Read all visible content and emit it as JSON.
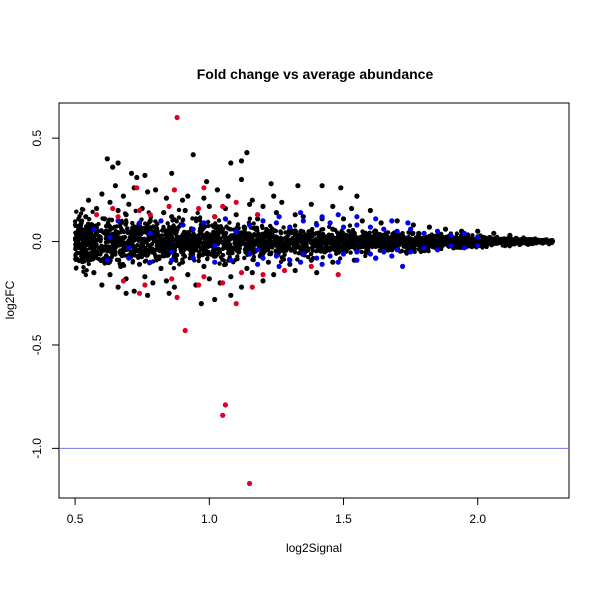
{
  "chart_data": {
    "type": "scatter",
    "title": "Fold change vs average abundance",
    "xlabel": "log2Signal",
    "ylabel": "log2FC",
    "xlim": [
      0.44,
      2.34
    ],
    "ylim": [
      -1.24,
      0.67
    ],
    "x_ticks": [
      0.5,
      1.0,
      1.5,
      2.0
    ],
    "x_tick_labels": [
      "0.5",
      "1.0",
      "1.5",
      "2.0"
    ],
    "y_ticks": [
      -1.0,
      -0.5,
      0.0,
      0.5
    ],
    "y_tick_labels": [
      "-1.0",
      "-0.5",
      "0.0",
      "0.5"
    ],
    "grid": false,
    "hline": {
      "y": -1.0,
      "color": "#7777dd"
    },
    "colors": {
      "black": "#000000",
      "blue": "#0000ee",
      "red": "#dd0022"
    },
    "series": [
      {
        "color": "black",
        "points": [
          [
            0.62,
            0.4
          ],
          [
            0.66,
            0.38
          ],
          [
            0.64,
            0.36
          ],
          [
            0.71,
            0.33
          ],
          [
            0.73,
            0.31
          ],
          [
            0.76,
            0.32
          ],
          [
            0.86,
            0.33
          ],
          [
            0.94,
            0.42
          ],
          [
            1.14,
            0.43
          ],
          [
            1.12,
            0.39
          ],
          [
            1.08,
            0.38
          ],
          [
            0.99,
            0.29
          ],
          [
            1.03,
            0.25
          ],
          [
            1.12,
            0.3
          ],
          [
            1.23,
            0.28
          ],
          [
            1.33,
            0.27
          ],
          [
            1.42,
            0.27
          ],
          [
            1.49,
            0.26
          ],
          [
            1.55,
            0.22
          ],
          [
            0.65,
            0.27
          ],
          [
            0.72,
            0.26
          ],
          [
            0.8,
            0.25
          ],
          [
            0.6,
            0.23
          ],
          [
            0.68,
            0.22
          ],
          [
            0.77,
            0.24
          ],
          [
            0.84,
            0.21
          ],
          [
            0.92,
            0.22
          ],
          [
            0.55,
            0.2
          ],
          [
            0.63,
            0.19
          ],
          [
            0.7,
            0.18
          ],
          [
            0.58,
            0.16
          ],
          [
            0.66,
            0.15
          ],
          [
            0.75,
            0.16
          ],
          [
            0.83,
            0.14
          ],
          [
            0.91,
            0.15
          ],
          [
            1.0,
            0.17
          ],
          [
            1.06,
            0.16
          ],
          [
            1.15,
            0.18
          ],
          [
            1.2,
            0.17
          ],
          [
            1.27,
            0.19
          ],
          [
            1.32,
            0.13
          ],
          [
            0.54,
            0.12
          ],
          [
            0.61,
            0.11
          ],
          [
            0.69,
            0.13
          ],
          [
            0.78,
            0.1
          ],
          [
            0.86,
            0.12
          ],
          [
            0.95,
            0.11
          ],
          [
            1.02,
            0.12
          ],
          [
            1.1,
            0.13
          ],
          [
            1.18,
            0.11
          ],
          [
            1.25,
            0.14
          ],
          [
            1.35,
            0.12
          ],
          [
            1.42,
            0.11
          ],
          [
            1.5,
            0.11
          ],
          [
            1.57,
            0.1
          ],
          [
            1.64,
            0.09
          ],
          [
            1.7,
            0.1
          ],
          [
            1.76,
            0.08
          ],
          [
            1.82,
            0.07
          ],
          [
            1.88,
            0.06
          ],
          [
            1.94,
            0.05
          ],
          [
            2.0,
            0.05
          ],
          [
            2.06,
            0.04
          ],
          [
            2.12,
            0.03
          ],
          [
            0.52,
            0.08
          ],
          [
            0.57,
            0.06
          ],
          [
            0.63,
            0.07
          ],
          [
            0.72,
            0.05
          ],
          [
            0.8,
            0.07
          ],
          [
            0.88,
            0.06
          ],
          [
            0.97,
            0.08
          ],
          [
            1.05,
            0.06
          ],
          [
            1.13,
            0.07
          ],
          [
            1.22,
            0.05
          ],
          [
            1.3,
            0.06
          ],
          [
            1.38,
            0.05
          ],
          [
            1.46,
            0.06
          ],
          [
            1.54,
            0.04
          ],
          [
            1.62,
            0.05
          ],
          [
            1.7,
            0.03
          ],
          [
            1.78,
            0.04
          ],
          [
            1.86,
            0.02
          ],
          [
            1.94,
            0.03
          ],
          [
            2.02,
            0.02
          ],
          [
            2.1,
            0.01
          ],
          [
            2.18,
            0.01
          ],
          [
            0.51,
            0.02
          ],
          [
            0.56,
            0.01
          ],
          [
            0.62,
            0.03
          ],
          [
            0.7,
            0.0
          ],
          [
            0.78,
            0.02
          ],
          [
            0.86,
            0.01
          ],
          [
            0.94,
            -0.01
          ],
          [
            1.02,
            0.02
          ],
          [
            1.1,
            0.0
          ],
          [
            1.18,
            0.01
          ],
          [
            1.26,
            -0.01
          ],
          [
            1.34,
            0.01
          ],
          [
            1.42,
            0.0
          ],
          [
            1.5,
            0.02
          ],
          [
            1.58,
            -0.01
          ],
          [
            1.66,
            0.01
          ],
          [
            1.74,
            0.0
          ],
          [
            1.82,
            0.01
          ],
          [
            1.9,
            -0.01
          ],
          [
            1.98,
            0.0
          ],
          [
            2.06,
            0.01
          ],
          [
            2.14,
            0.0
          ],
          [
            2.2,
            0.01
          ],
          [
            2.24,
            0.0
          ],
          [
            2.27,
            0.0
          ],
          [
            0.53,
            -0.03
          ],
          [
            0.58,
            -0.05
          ],
          [
            0.64,
            -0.04
          ],
          [
            0.71,
            -0.06
          ],
          [
            0.79,
            -0.05
          ],
          [
            0.87,
            -0.07
          ],
          [
            0.95,
            -0.04
          ],
          [
            1.03,
            -0.06
          ],
          [
            1.11,
            -0.05
          ],
          [
            1.19,
            -0.07
          ],
          [
            1.27,
            -0.04
          ],
          [
            1.35,
            -0.06
          ],
          [
            1.43,
            -0.05
          ],
          [
            1.51,
            -0.04
          ],
          [
            1.59,
            -0.05
          ],
          [
            1.67,
            -0.03
          ],
          [
            1.75,
            -0.04
          ],
          [
            1.83,
            -0.02
          ],
          [
            1.91,
            -0.03
          ],
          [
            1.99,
            -0.02
          ],
          [
            0.55,
            -0.09
          ],
          [
            0.61,
            -0.1
          ],
          [
            0.67,
            -0.12
          ],
          [
            0.74,
            -0.11
          ],
          [
            0.82,
            -0.13
          ],
          [
            0.9,
            -0.1
          ],
          [
            0.98,
            -0.12
          ],
          [
            1.06,
            -0.11
          ],
          [
            1.14,
            -0.13
          ],
          [
            1.22,
            -0.1
          ],
          [
            1.3,
            -0.11
          ],
          [
            1.38,
            -0.09
          ],
          [
            1.46,
            -0.1
          ],
          [
            1.54,
            -0.09
          ],
          [
            1.62,
            -0.08
          ],
          [
            0.57,
            -0.15
          ],
          [
            0.63,
            -0.16
          ],
          [
            0.69,
            -0.18
          ],
          [
            0.76,
            -0.17
          ],
          [
            0.84,
            -0.19
          ],
          [
            0.92,
            -0.16
          ],
          [
            1.0,
            -0.18
          ],
          [
            1.08,
            -0.17
          ],
          [
            1.16,
            -0.15
          ],
          [
            1.24,
            -0.16
          ],
          [
            1.32,
            -0.14
          ],
          [
            1.4,
            -0.15
          ],
          [
            0.6,
            -0.21
          ],
          [
            0.66,
            -0.22
          ],
          [
            0.72,
            -0.24
          ],
          [
            0.79,
            -0.2
          ],
          [
            0.87,
            -0.22
          ],
          [
            0.95,
            -0.21
          ],
          [
            1.04,
            -0.2
          ],
          [
            1.12,
            -0.22
          ],
          [
            1.2,
            -0.19
          ],
          [
            0.69,
            -0.25
          ],
          [
            0.77,
            -0.26
          ],
          [
            0.85,
            -0.25
          ],
          [
            0.97,
            -0.3
          ],
          [
            1.02,
            -0.28
          ],
          [
            1.08,
            -0.26
          ],
          [
            0.9,
            0.2
          ],
          [
            0.98,
            0.21
          ],
          [
            1.07,
            0.22
          ],
          [
            1.16,
            0.2
          ],
          [
            1.24,
            0.22
          ],
          [
            1.38,
            0.18
          ],
          [
            1.46,
            0.17
          ],
          [
            1.53,
            0.16
          ],
          [
            1.6,
            0.15
          ]
        ]
      },
      {
        "color": "blue",
        "points": [
          [
            0.57,
            0.06
          ],
          [
            0.63,
            0.02
          ],
          [
            0.7,
            -0.03
          ],
          [
            0.78,
            0.04
          ],
          [
            0.86,
            -0.05
          ],
          [
            0.94,
            0.06
          ],
          [
            1.02,
            -0.02
          ],
          [
            1.1,
            0.05
          ],
          [
            1.18,
            -0.04
          ],
          [
            1.15,
            0.08
          ],
          [
            1.2,
            0.1
          ],
          [
            1.25,
            0.09
          ],
          [
            1.3,
            0.07
          ],
          [
            1.35,
            0.1
          ],
          [
            1.4,
            0.08
          ],
          [
            1.45,
            0.09
          ],
          [
            1.5,
            0.07
          ],
          [
            1.55,
            0.08
          ],
          [
            1.6,
            0.07
          ],
          [
            1.65,
            0.06
          ],
          [
            1.7,
            0.05
          ],
          [
            1.75,
            0.06
          ],
          [
            1.8,
            0.04
          ],
          [
            1.85,
            0.05
          ],
          [
            1.9,
            0.03
          ],
          [
            1.95,
            0.04
          ],
          [
            2.0,
            0.02
          ],
          [
            1.18,
            0.13
          ],
          [
            1.26,
            0.12
          ],
          [
            1.34,
            0.14
          ],
          [
            1.42,
            0.12
          ],
          [
            1.48,
            0.13
          ],
          [
            1.55,
            0.12
          ],
          [
            1.62,
            0.11
          ],
          [
            1.68,
            0.1
          ],
          [
            1.74,
            0.09
          ],
          [
            1.15,
            -0.06
          ],
          [
            1.2,
            -0.08
          ],
          [
            1.25,
            -0.07
          ],
          [
            1.3,
            -0.09
          ],
          [
            1.35,
            -0.06
          ],
          [
            1.4,
            -0.08
          ],
          [
            1.45,
            -0.07
          ],
          [
            1.5,
            -0.06
          ],
          [
            1.55,
            -0.05
          ],
          [
            1.6,
            -0.06
          ],
          [
            1.65,
            -0.05
          ],
          [
            1.7,
            -0.04
          ],
          [
            1.75,
            -0.05
          ],
          [
            1.8,
            -0.03
          ],
          [
            1.85,
            -0.04
          ],
          [
            1.9,
            -0.02
          ],
          [
            1.95,
            -0.03
          ],
          [
            2.0,
            -0.02
          ],
          [
            1.18,
            -0.11
          ],
          [
            1.26,
            -0.12
          ],
          [
            1.34,
            -0.1
          ],
          [
            1.42,
            -0.11
          ],
          [
            1.48,
            -0.1
          ],
          [
            1.55,
            -0.09
          ],
          [
            1.62,
            -0.08
          ],
          [
            1.68,
            -0.07
          ],
          [
            1.72,
            -0.12
          ],
          [
            0.66,
            0.1
          ],
          [
            0.74,
            0.09
          ],
          [
            0.82,
            0.1
          ],
          [
            0.9,
            0.08
          ],
          [
            0.98,
            0.09
          ],
          [
            1.06,
            0.11
          ],
          [
            0.62,
            -0.09
          ],
          [
            0.7,
            -0.08
          ],
          [
            0.78,
            -0.1
          ],
          [
            0.86,
            -0.09
          ],
          [
            0.94,
            -0.08
          ],
          [
            1.02,
            -0.1
          ],
          [
            1.08,
            -0.09
          ]
        ]
      },
      {
        "color": "red",
        "points": [
          [
            0.88,
            0.6
          ],
          [
            0.73,
            0.26
          ],
          [
            0.87,
            0.25
          ],
          [
            0.98,
            0.26
          ],
          [
            0.64,
            0.16
          ],
          [
            0.74,
            0.15
          ],
          [
            0.85,
            0.17
          ],
          [
            0.96,
            0.16
          ],
          [
            1.05,
            0.17
          ],
          [
            1.1,
            0.19
          ],
          [
            0.58,
            0.13
          ],
          [
            0.66,
            0.12
          ],
          [
            0.78,
            0.13
          ],
          [
            1.02,
            0.12
          ],
          [
            1.18,
            0.13
          ],
          [
            0.68,
            -0.19
          ],
          [
            0.76,
            -0.21
          ],
          [
            0.86,
            -0.18
          ],
          [
            0.98,
            -0.17
          ],
          [
            1.05,
            -0.2
          ],
          [
            1.12,
            -0.15
          ],
          [
            1.2,
            -0.16
          ],
          [
            1.28,
            -0.14
          ],
          [
            1.38,
            -0.12
          ],
          [
            1.48,
            -0.16
          ],
          [
            0.74,
            -0.25
          ],
          [
            0.88,
            -0.27
          ],
          [
            0.96,
            -0.21
          ],
          [
            1.1,
            -0.3
          ],
          [
            1.16,
            -0.22
          ],
          [
            0.91,
            -0.43
          ],
          [
            1.06,
            -0.79
          ],
          [
            1.05,
            -0.84
          ],
          [
            1.15,
            -1.17
          ]
        ]
      }
    ]
  }
}
